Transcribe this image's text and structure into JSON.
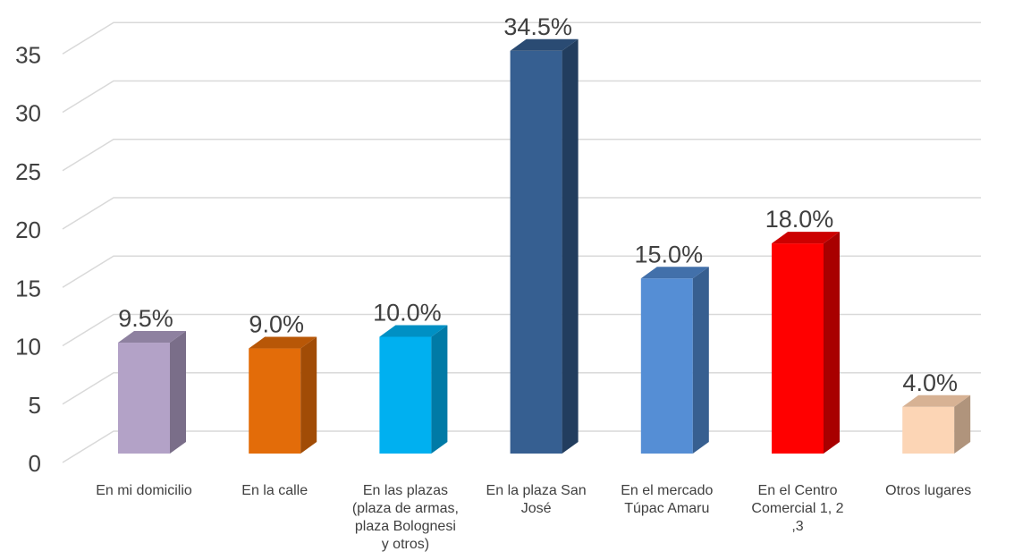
{
  "chart_data": {
    "type": "bar",
    "style": "3d-column",
    "categories": [
      [
        "En mi domicilio"
      ],
      [
        "En la calle"
      ],
      [
        "En las plazas",
        "(plaza de armas,",
        "plaza Bolognesi",
        "y otros)"
      ],
      [
        "En la plaza San",
        "José"
      ],
      [
        "En el mercado",
        "Túpac Amaru"
      ],
      [
        "En el Centro",
        "Comercial 1, 2",
        ",3"
      ],
      [
        "Otros lugares"
      ]
    ],
    "values": [
      9.5,
      9.0,
      10.0,
      34.5,
      15.0,
      18.0,
      4.0
    ],
    "data_labels": [
      "9.5%",
      "9.0%",
      "10.0%",
      "34.5%",
      "15.0%",
      "18.0%",
      "4.0%"
    ],
    "colors": [
      {
        "front": "#b3a2c7",
        "side": "#7a6e89",
        "top": "#8e81a0"
      },
      {
        "front": "#e36c09",
        "side": "#a14c06",
        "top": "#b85707"
      },
      {
        "front": "#00b0f0",
        "side": "#007aa6",
        "top": "#0090c4"
      },
      {
        "front": "#365f91",
        "side": "#223d5e",
        "top": "#2a4b73"
      },
      {
        "front": "#558ed5",
        "side": "#375f90",
        "top": "#4270aa"
      },
      {
        "front": "#ff0000",
        "side": "#a80000",
        "top": "#cc0000"
      },
      {
        "front": "#fcd5b5",
        "side": "#b0947c",
        "top": "#d7b294"
      }
    ],
    "yticks": [
      "0",
      "5",
      "10",
      "15",
      "20",
      "25",
      "30",
      "35"
    ],
    "ylim": [
      0,
      40
    ],
    "grid": true
  }
}
